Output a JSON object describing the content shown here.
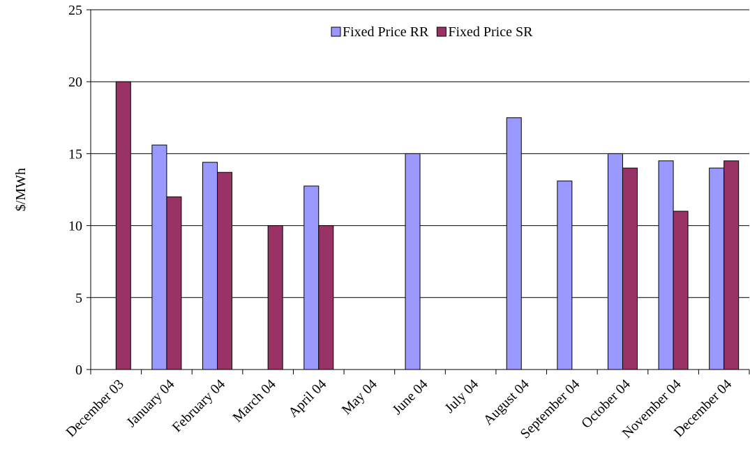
{
  "chart_data": {
    "type": "bar",
    "y_label": "$/MWh",
    "categories": [
      "December 03",
      "January 04",
      "February 04",
      "March 04",
      "April 04",
      "May 04",
      "June 04",
      "July 04",
      "August 04",
      "September 04",
      "October 04",
      "November 04",
      "December 04"
    ],
    "series": [
      {
        "name": "Fixed Price RR",
        "color": "#9999ff",
        "values": [
          null,
          15.6,
          14.4,
          null,
          12.75,
          null,
          15,
          null,
          17.5,
          13.1,
          15,
          14.5,
          14
        ]
      },
      {
        "name": "Fixed Price SR",
        "color": "#993366",
        "values": [
          20,
          12,
          13.7,
          10,
          10,
          null,
          null,
          null,
          null,
          null,
          14,
          11,
          14.5
        ]
      }
    ],
    "ylim": [
      0,
      25
    ],
    "yticks": [
      0,
      5,
      10,
      15,
      20,
      25
    ],
    "grid": true,
    "legend": "top"
  }
}
